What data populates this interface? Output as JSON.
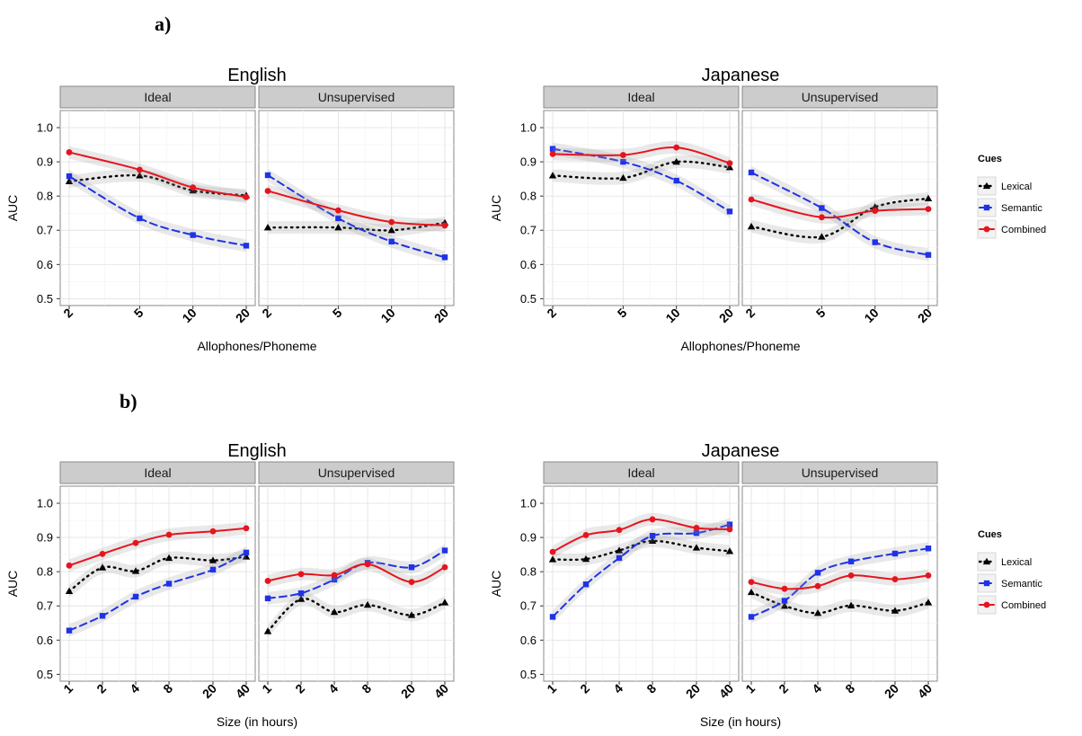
{
  "labels": {
    "a": "a)",
    "b": "b)"
  },
  "legend": {
    "title": "Cues",
    "items": [
      {
        "name": "Lexical",
        "color": "#000000",
        "dash": "dotted",
        "marker": "triangle"
      },
      {
        "name": "Semantic",
        "color": "#1f32e6",
        "dash": "dashed",
        "marker": "square"
      },
      {
        "name": "Combined",
        "color": "#e6141e",
        "dash": "solid",
        "marker": "circle"
      }
    ]
  },
  "chart_data": [
    {
      "type": "line",
      "id": "a-english",
      "title": "English",
      "ylabel": "AUC",
      "xlabel": "Allophones/Phoneme",
      "x_scale": "log",
      "xlim": [
        2,
        20
      ],
      "ylim": [
        0.48,
        1.05
      ],
      "y_ticks": [
        "0.5",
        "0.6",
        "0.7",
        "0.8",
        "0.9",
        "1.0"
      ],
      "x_ticks": [
        2,
        5,
        10,
        20
      ],
      "x_tick_labels": [
        "2",
        "5",
        "10",
        "20"
      ],
      "facets": [
        {
          "strip": "Ideal",
          "series": [
            {
              "name": "Lexical",
              "x": [
                2,
                5,
                10,
                20
              ],
              "y": [
                0.843,
                0.86,
                0.816,
                0.802
              ]
            },
            {
              "name": "Semantic",
              "x": [
                2,
                5,
                10,
                20
              ],
              "y": [
                0.858,
                0.735,
                0.686,
                0.655
              ]
            },
            {
              "name": "Combined",
              "x": [
                2,
                5,
                10,
                20
              ],
              "y": [
                0.928,
                0.877,
                0.825,
                0.797
              ]
            }
          ]
        },
        {
          "strip": "Unsupervised",
          "series": [
            {
              "name": "Lexical",
              "x": [
                2,
                5,
                10,
                20
              ],
              "y": [
                0.708,
                0.708,
                0.7,
                0.722
              ]
            },
            {
              "name": "Semantic",
              "x": [
                2,
                5,
                10,
                20
              ],
              "y": [
                0.861,
                0.735,
                0.667,
                0.621
              ]
            },
            {
              "name": "Combined",
              "x": [
                2,
                5,
                10,
                20
              ],
              "y": [
                0.815,
                0.758,
                0.724,
                0.714
              ]
            }
          ]
        }
      ]
    },
    {
      "type": "line",
      "id": "a-japanese",
      "title": "Japanese",
      "ylabel": "AUC",
      "xlabel": "Allophones/Phoneme",
      "x_scale": "log",
      "xlim": [
        2,
        20
      ],
      "ylim": [
        0.48,
        1.05
      ],
      "y_ticks": [
        "0.5",
        "0.6",
        "0.7",
        "0.8",
        "0.9",
        "1.0"
      ],
      "x_ticks": [
        2,
        5,
        10,
        20
      ],
      "x_tick_labels": [
        "2",
        "5",
        "10",
        "20"
      ],
      "facets": [
        {
          "strip": "Ideal",
          "series": [
            {
              "name": "Lexical",
              "x": [
                2,
                5,
                10,
                20
              ],
              "y": [
                0.86,
                0.853,
                0.9,
                0.884
              ]
            },
            {
              "name": "Semantic",
              "x": [
                2,
                5,
                10,
                20
              ],
              "y": [
                0.938,
                0.9,
                0.845,
                0.755
              ]
            },
            {
              "name": "Combined",
              "x": [
                2,
                5,
                10,
                20
              ],
              "y": [
                0.923,
                0.92,
                0.942,
                0.896
              ]
            }
          ]
        },
        {
          "strip": "Unsupervised",
          "series": [
            {
              "name": "Lexical",
              "x": [
                2,
                5,
                10,
                20
              ],
              "y": [
                0.711,
                0.681,
                0.768,
                0.793
              ]
            },
            {
              "name": "Semantic",
              "x": [
                2,
                5,
                10,
                20
              ],
              "y": [
                0.869,
                0.765,
                0.665,
                0.628
              ]
            },
            {
              "name": "Combined",
              "x": [
                2,
                5,
                10,
                20
              ],
              "y": [
                0.79,
                0.738,
                0.757,
                0.762
              ]
            }
          ]
        }
      ]
    },
    {
      "type": "line",
      "id": "b-english",
      "title": "English",
      "ylabel": "AUC",
      "xlabel": "Size (in hours)",
      "x_scale": "log",
      "xlim": [
        1,
        40
      ],
      "ylim": [
        0.48,
        1.05
      ],
      "y_ticks": [
        "0.5",
        "0.6",
        "0.7",
        "0.8",
        "0.9",
        "1.0"
      ],
      "x_ticks": [
        1,
        2,
        4,
        8,
        20,
        40
      ],
      "x_tick_labels": [
        "1",
        "2",
        "4",
        "8",
        "20",
        "40"
      ],
      "facets": [
        {
          "strip": "Ideal",
          "series": [
            {
              "name": "Lexical",
              "x": [
                1,
                2,
                4,
                8,
                20,
                40
              ],
              "y": [
                0.743,
                0.812,
                0.802,
                0.84,
                0.833,
                0.844
              ]
            },
            {
              "name": "Semantic",
              "x": [
                1,
                2,
                4,
                8,
                20,
                40
              ],
              "y": [
                0.628,
                0.671,
                0.727,
                0.765,
                0.806,
                0.856
              ]
            },
            {
              "name": "Combined",
              "x": [
                1,
                2,
                4,
                8,
                20,
                40
              ],
              "y": [
                0.818,
                0.852,
                0.884,
                0.908,
                0.918,
                0.927
              ]
            }
          ]
        },
        {
          "strip": "Unsupervised",
          "series": [
            {
              "name": "Lexical",
              "x": [
                1,
                2,
                4,
                8,
                20,
                40
              ],
              "y": [
                0.626,
                0.72,
                0.682,
                0.703,
                0.673,
                0.71
              ]
            },
            {
              "name": "Semantic",
              "x": [
                1,
                2,
                4,
                8,
                20,
                40
              ],
              "y": [
                0.722,
                0.737,
                0.777,
                0.826,
                0.813,
                0.862
              ]
            },
            {
              "name": "Combined",
              "x": [
                1,
                2,
                4,
                8,
                20,
                40
              ],
              "y": [
                0.773,
                0.793,
                0.79,
                0.822,
                0.77,
                0.813
              ]
            }
          ]
        }
      ]
    },
    {
      "type": "line",
      "id": "b-japanese",
      "title": "Japanese",
      "ylabel": "AUC",
      "xlabel": "Size (in hours)",
      "x_scale": "log",
      "xlim": [
        1,
        40
      ],
      "ylim": [
        0.48,
        1.05
      ],
      "y_ticks": [
        "0.5",
        "0.6",
        "0.7",
        "0.8",
        "0.9",
        "1.0"
      ],
      "x_ticks": [
        1,
        2,
        4,
        8,
        20,
        40
      ],
      "x_tick_labels": [
        "1",
        "2",
        "4",
        "8",
        "20",
        "40"
      ],
      "facets": [
        {
          "strip": "Ideal",
          "series": [
            {
              "name": "Lexical",
              "x": [
                1,
                2,
                4,
                8,
                20,
                40
              ],
              "y": [
                0.836,
                0.837,
                0.862,
                0.89,
                0.87,
                0.86
              ]
            },
            {
              "name": "Semantic",
              "x": [
                1,
                2,
                4,
                8,
                20,
                40
              ],
              "y": [
                0.668,
                0.763,
                0.84,
                0.905,
                0.913,
                0.938
              ]
            },
            {
              "name": "Combined",
              "x": [
                1,
                2,
                4,
                8,
                20,
                40
              ],
              "y": [
                0.858,
                0.907,
                0.922,
                0.953,
                0.928,
                0.924
              ]
            }
          ]
        },
        {
          "strip": "Unsupervised",
          "series": [
            {
              "name": "Lexical",
              "x": [
                1,
                2,
                4,
                8,
                20,
                40
              ],
              "y": [
                0.74,
                0.7,
                0.679,
                0.701,
                0.686,
                0.71
              ]
            },
            {
              "name": "Semantic",
              "x": [
                1,
                2,
                4,
                8,
                20,
                40
              ],
              "y": [
                0.668,
                0.715,
                0.797,
                0.83,
                0.853,
                0.868
              ]
            },
            {
              "name": "Combined",
              "x": [
                1,
                2,
                4,
                8,
                20,
                40
              ],
              "y": [
                0.77,
                0.75,
                0.758,
                0.789,
                0.778,
                0.789
              ]
            }
          ]
        }
      ]
    }
  ]
}
